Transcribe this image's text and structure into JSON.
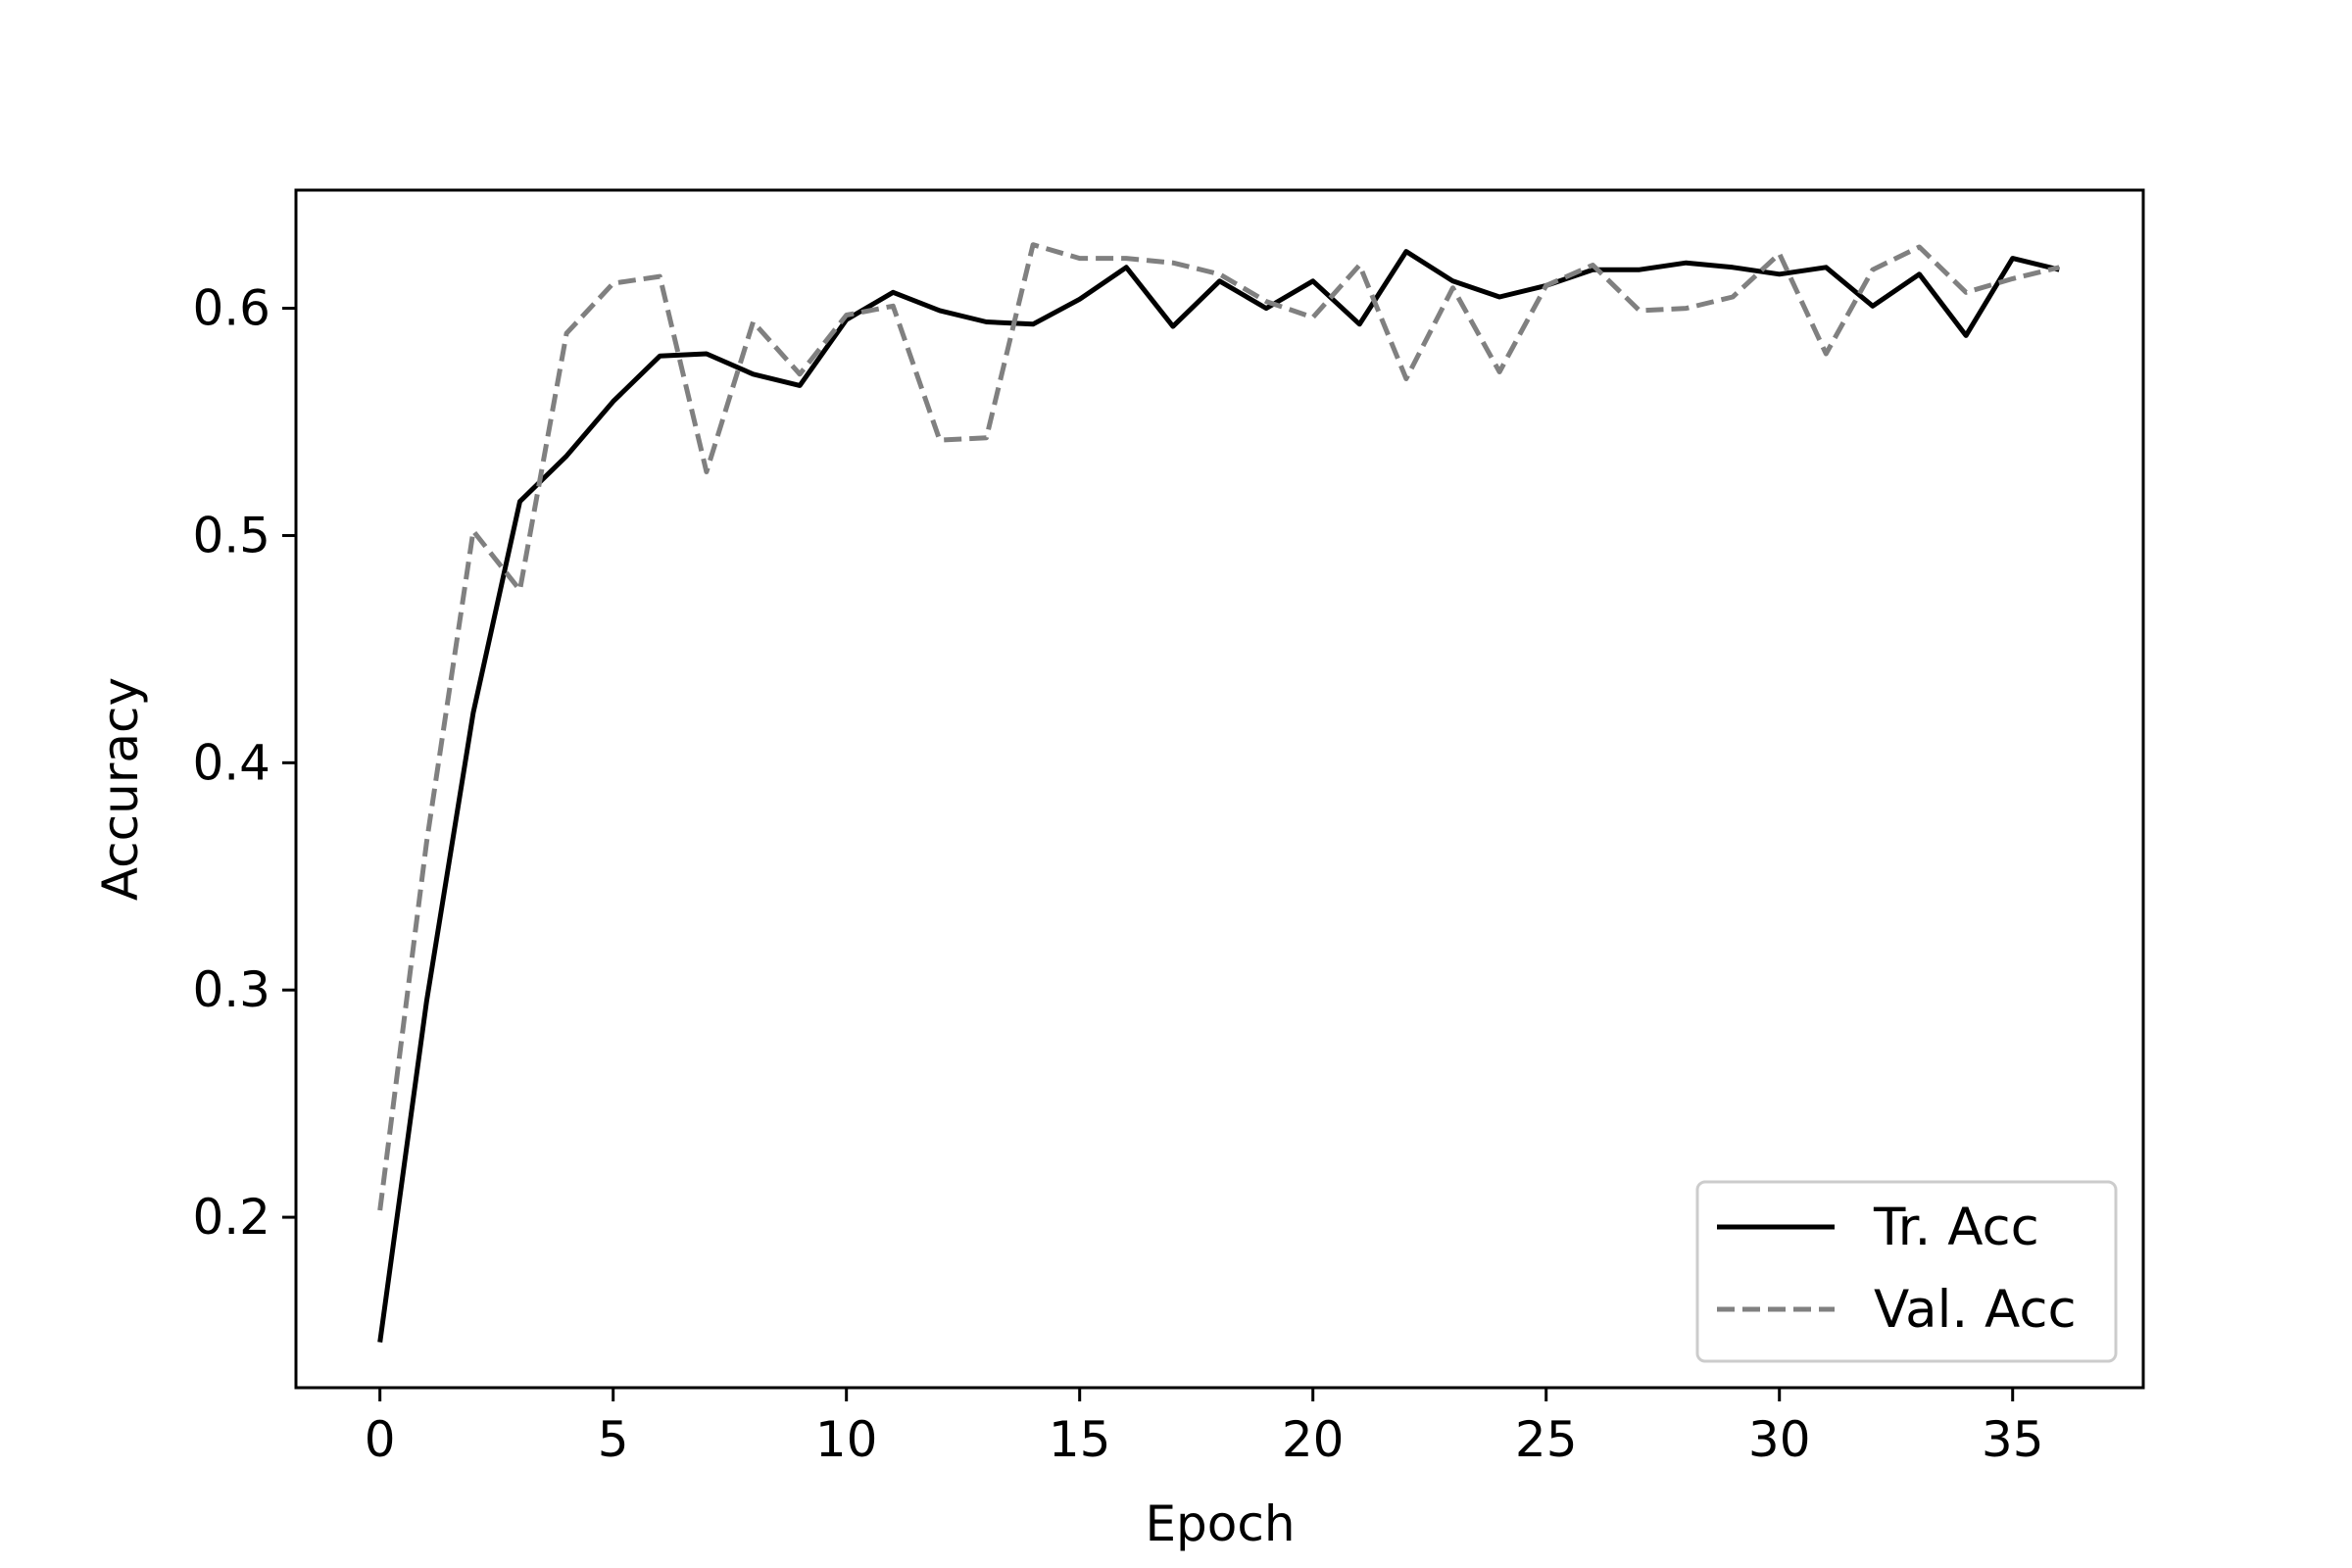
{
  "chart_data": {
    "type": "line",
    "title": "",
    "xlabel": "Epoch",
    "ylabel": "Accuracy",
    "xlim": [
      -1.8,
      37.8
    ],
    "ylim": [
      0.125,
      0.652
    ],
    "xticks": [
      0,
      5,
      10,
      15,
      20,
      25,
      30,
      35
    ],
    "yticks": [
      0.2,
      0.3,
      0.4,
      0.5,
      0.6
    ],
    "xtick_labels": [
      "0",
      "5",
      "10",
      "15",
      "20",
      "25",
      "30",
      "35"
    ],
    "ytick_labels": [
      "0.2",
      "0.3",
      "0.4",
      "0.5",
      "0.6"
    ],
    "grid": false,
    "legend_position": "lower-right",
    "x": [
      0,
      1,
      2,
      3,
      4,
      5,
      6,
      7,
      8,
      9,
      10,
      11,
      12,
      13,
      14,
      15,
      16,
      17,
      18,
      19,
      20,
      21,
      22,
      23,
      24,
      25,
      26,
      27,
      28,
      29,
      30,
      31,
      32,
      33,
      34,
      35,
      36
    ],
    "series": [
      {
        "name": "Tr. Acc",
        "color": "#000000",
        "style": "solid",
        "values": [
          0.145,
          0.295,
          0.422,
          0.515,
          0.535,
          0.559,
          0.579,
          0.58,
          0.571,
          0.566,
          0.595,
          0.607,
          0.599,
          0.594,
          0.593,
          0.604,
          0.618,
          0.592,
          0.612,
          0.6,
          0.612,
          0.593,
          0.625,
          0.612,
          0.605,
          0.61,
          0.617,
          0.617,
          0.62,
          0.618,
          0.615,
          0.618,
          0.601,
          0.615,
          0.588,
          0.622,
          0.617
        ]
      },
      {
        "name": "Val. Acc",
        "color": "#808080",
        "style": "dashed",
        "values": [
          0.203,
          0.365,
          0.502,
          0.476,
          0.589,
          0.611,
          0.614,
          0.528,
          0.594,
          0.571,
          0.597,
          0.601,
          0.542,
          0.543,
          0.628,
          0.622,
          0.622,
          0.62,
          0.615,
          0.603,
          0.596,
          0.619,
          0.569,
          0.609,
          0.572,
          0.61,
          0.619,
          0.599,
          0.6,
          0.605,
          0.624,
          0.58,
          0.617,
          0.627,
          0.607,
          0.613,
          0.618
        ]
      }
    ]
  }
}
